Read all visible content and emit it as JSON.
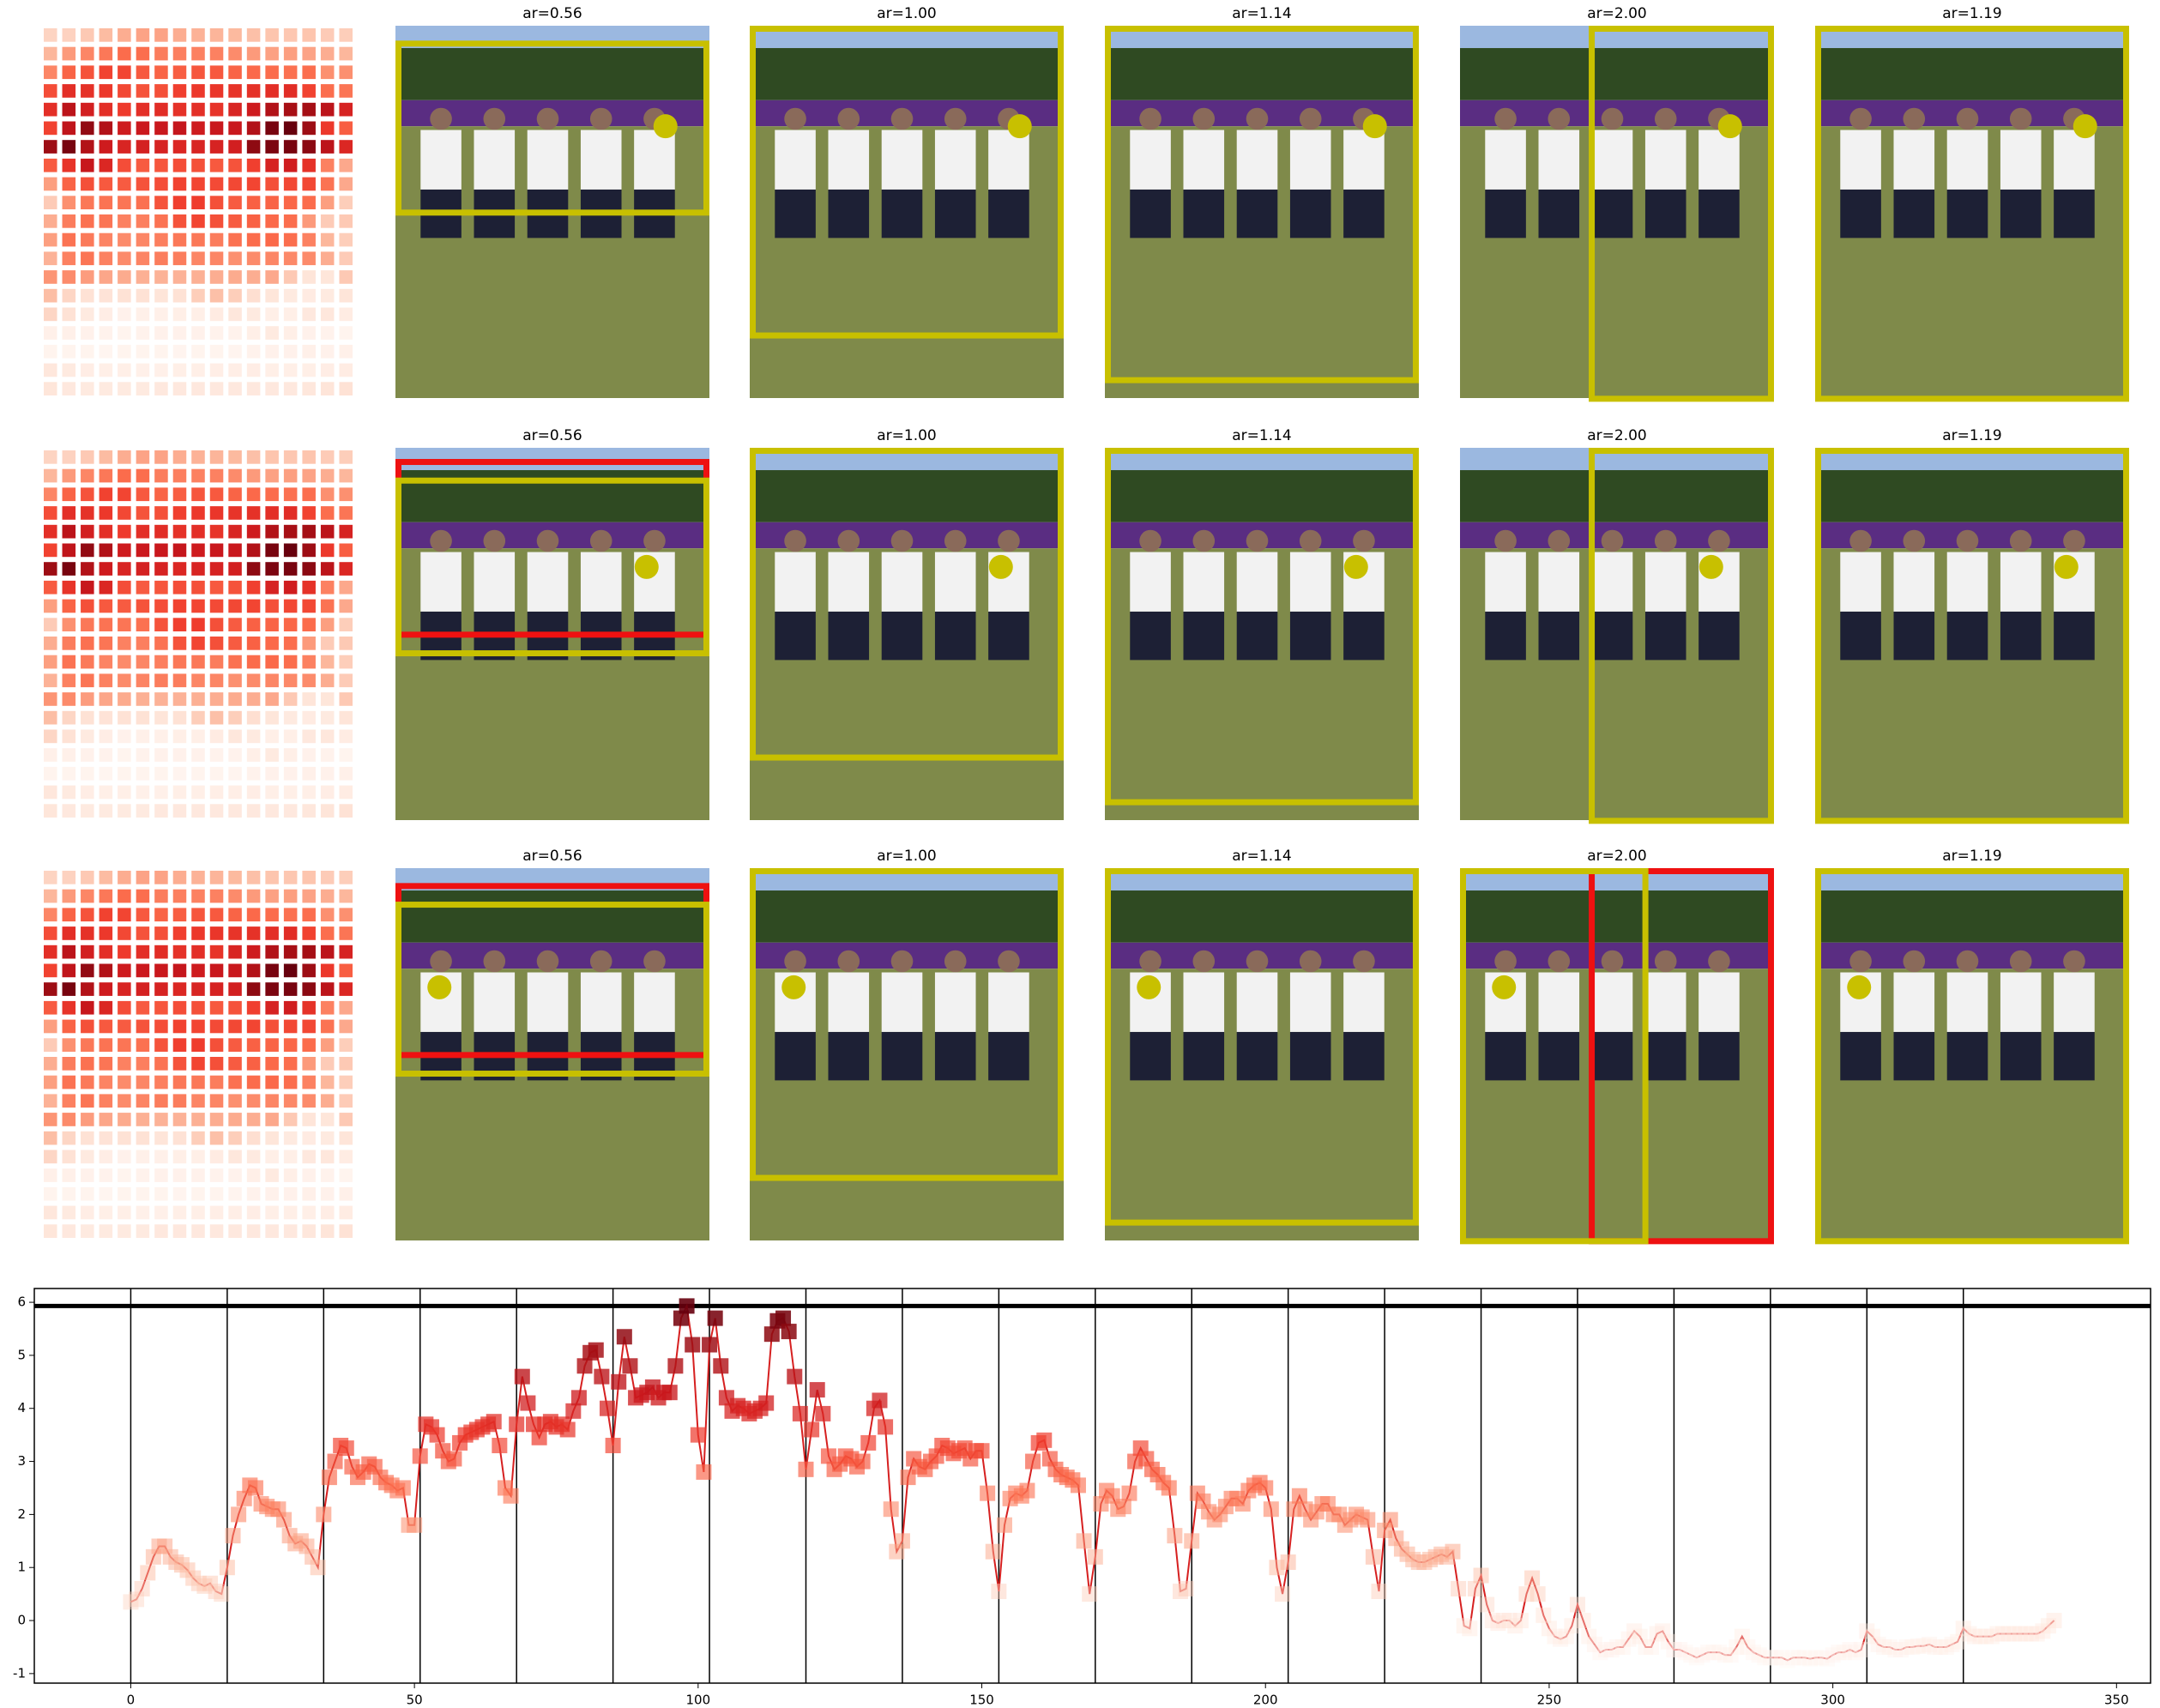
{
  "panel_grid": {
    "rows": [
      {
        "titles": [
          "ar=0.56",
          "ar=1.00",
          "ar=1.14",
          "ar=2.00",
          "ar=1.19"
        ]
      },
      {
        "titles": [
          "ar=0.56",
          "ar=1.00",
          "ar=1.14",
          "ar=2.00",
          "ar=1.19"
        ]
      },
      {
        "titles": [
          "ar=0.56",
          "ar=1.00",
          "ar=1.14",
          "ar=2.00",
          "ar=1.19"
        ]
      }
    ]
  },
  "chart_data": {
    "type": "line",
    "colormap": "Reds",
    "line_color": "#d62020",
    "values": [
      0.35,
      0.4,
      0.6,
      0.9,
      1.2,
      1.4,
      1.4,
      1.2,
      1.1,
      1.05,
      0.95,
      0.8,
      0.7,
      0.65,
      0.7,
      0.55,
      0.5,
      1.0,
      1.6,
      2.0,
      2.3,
      2.55,
      2.5,
      2.2,
      2.15,
      2.1,
      2.1,
      1.9,
      1.6,
      1.45,
      1.5,
      1.4,
      1.2,
      1.0,
      2.0,
      2.7,
      3.0,
      3.3,
      3.25,
      2.9,
      2.7,
      2.8,
      2.95,
      2.9,
      2.7,
      2.6,
      2.55,
      2.45,
      2.5,
      1.8,
      1.8,
      3.1,
      3.7,
      3.65,
      3.5,
      3.2,
      3.0,
      3.05,
      3.35,
      3.5,
      3.55,
      3.6,
      3.65,
      3.7,
      3.75,
      3.3,
      2.5,
      2.35,
      3.7,
      4.6,
      4.1,
      3.7,
      3.45,
      3.7,
      3.75,
      3.65,
      3.7,
      3.6,
      3.95,
      4.2,
      4.8,
      5.05,
      5.1,
      4.6,
      4.0,
      3.3,
      4.5,
      5.35,
      4.8,
      4.2,
      4.25,
      4.3,
      4.4,
      4.2,
      4.3,
      4.3,
      4.8,
      5.7,
      5.93,
      5.2,
      3.5,
      2.8,
      5.2,
      5.7,
      4.8,
      4.2,
      3.95,
      4.05,
      4.0,
      3.9,
      3.95,
      4.0,
      4.1,
      5.4,
      5.65,
      5.7,
      5.45,
      4.6,
      3.9,
      2.85,
      3.6,
      4.35,
      3.9,
      3.1,
      2.85,
      2.95,
      3.1,
      3.05,
      2.9,
      3.0,
      3.35,
      4.0,
      4.15,
      3.65,
      2.1,
      1.3,
      1.5,
      2.7,
      3.05,
      2.9,
      2.85,
      3.0,
      3.1,
      3.3,
      3.25,
      3.15,
      3.2,
      3.25,
      3.05,
      3.2,
      3.2,
      2.4,
      1.3,
      0.55,
      1.8,
      2.3,
      2.4,
      2.35,
      2.45,
      3.0,
      3.35,
      3.4,
      3.05,
      2.85,
      2.75,
      2.7,
      2.65,
      2.55,
      1.5,
      0.5,
      1.2,
      2.2,
      2.45,
      2.35,
      2.1,
      2.15,
      2.4,
      3.0,
      3.25,
      3.05,
      2.85,
      2.75,
      2.6,
      2.5,
      1.6,
      0.55,
      0.6,
      1.5,
      2.4,
      2.25,
      2.05,
      1.9,
      2.0,
      2.15,
      2.3,
      2.3,
      2.2,
      2.45,
      2.55,
      2.6,
      2.5,
      2.1,
      1.0,
      0.5,
      1.1,
      2.1,
      2.35,
      2.1,
      1.9,
      2.05,
      2.2,
      2.2,
      2.0,
      2.0,
      1.8,
      1.9,
      2.0,
      1.95,
      1.9,
      1.2,
      0.55,
      1.7,
      1.9,
      1.55,
      1.35,
      1.25,
      1.15,
      1.1,
      1.1,
      1.15,
      1.2,
      1.25,
      1.2,
      1.3,
      0.6,
      -0.1,
      -0.15,
      0.6,
      0.85,
      0.3,
      0.0,
      -0.05,
      0.0,
      0.0,
      -0.1,
      0.0,
      0.5,
      0.8,
      0.5,
      0.1,
      -0.15,
      -0.3,
      -0.35,
      -0.3,
      -0.1,
      0.3,
      0.0,
      -0.3,
      -0.45,
      -0.6,
      -0.55,
      -0.55,
      -0.5,
      -0.5,
      -0.35,
      -0.2,
      -0.3,
      -0.5,
      -0.5,
      -0.25,
      -0.2,
      -0.4,
      -0.55,
      -0.55,
      -0.6,
      -0.65,
      -0.7,
      -0.65,
      -0.6,
      -0.6,
      -0.6,
      -0.65,
      -0.65,
      -0.5,
      -0.3,
      -0.5,
      -0.6,
      -0.65,
      -0.7,
      -0.7,
      -0.7,
      -0.7,
      -0.75,
      -0.7,
      -0.7,
      -0.7,
      -0.72,
      -0.7,
      -0.7,
      -0.72,
      -0.65,
      -0.6,
      -0.6,
      -0.55,
      -0.6,
      -0.55,
      -0.2,
      -0.3,
      -0.45,
      -0.5,
      -0.5,
      -0.55,
      -0.55,
      -0.5,
      -0.5,
      -0.48,
      -0.48,
      -0.45,
      -0.5,
      -0.5,
      -0.5,
      -0.45,
      -0.4,
      -0.15,
      -0.25,
      -0.3,
      -0.3,
      -0.3,
      -0.3,
      -0.25,
      -0.25,
      -0.25,
      -0.25,
      -0.25,
      -0.25,
      -0.25,
      -0.25,
      -0.2,
      -0.1,
      0.0
    ],
    "heatmap_columns": 17,
    "xlim": [
      -17,
      356
    ],
    "ylim": [
      -1.18,
      6.26
    ],
    "xticks": [
      0,
      50,
      100,
      150,
      200,
      250,
      300,
      350
    ],
    "yticks": [
      -1,
      0,
      1,
      2,
      3,
      4,
      5,
      6
    ],
    "vlines": [
      0,
      17,
      34,
      51,
      68,
      85,
      102,
      119,
      136,
      153,
      170,
      187,
      204,
      221,
      238,
      255,
      272,
      289,
      306,
      323
    ],
    "hline": 5.93
  }
}
